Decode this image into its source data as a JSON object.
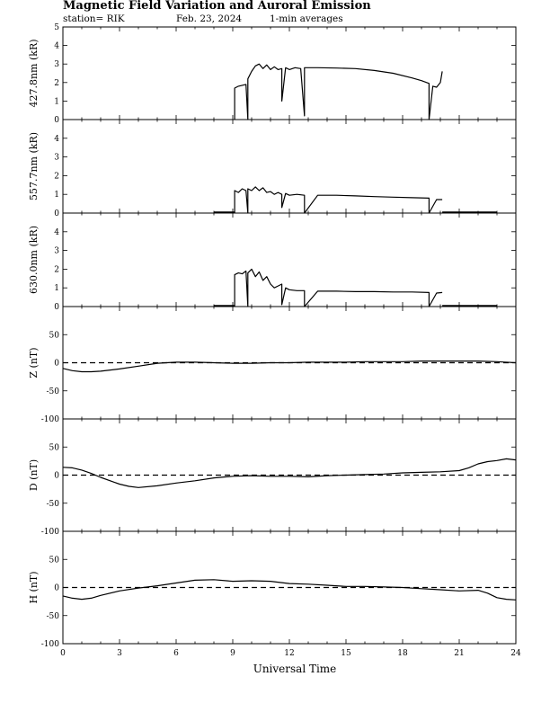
{
  "header": {
    "title": "Magnetic Field Variation and Auroral Emission",
    "station": "station= RIK",
    "date": "Feb. 23, 2024",
    "averaging": "1-min averages"
  },
  "chart_data": {
    "type": "line",
    "xlabel": "Universal Time",
    "xlim": [
      0,
      24
    ],
    "xticks": [
      0,
      3,
      6,
      9,
      12,
      15,
      18,
      21,
      24
    ],
    "panels": [
      {
        "id": "p4278",
        "ylabel": "427.8nm (kR)",
        "ylim": [
          0,
          5
        ],
        "yticks": [
          0,
          1,
          2,
          3,
          4,
          5
        ],
        "zero_line": false,
        "x": [
          9.1,
          9.1,
          9.3,
          9.5,
          9.7,
          9.8,
          9.8,
          10.0,
          10.2,
          10.4,
          10.6,
          10.8,
          11.0,
          11.2,
          11.4,
          11.6,
          11.6,
          11.8,
          12.0,
          12.3,
          12.6,
          12.8,
          12.8,
          13.5,
          14.5,
          15.5,
          16.5,
          17.5,
          18.5,
          19.0,
          19.4,
          19.4,
          19.6,
          19.8,
          20.0,
          20.1
        ],
        "y": [
          0,
          1.7,
          1.8,
          1.85,
          1.9,
          0,
          2.2,
          2.6,
          2.9,
          3.0,
          2.75,
          2.95,
          2.7,
          2.85,
          2.7,
          2.75,
          1.0,
          2.8,
          2.7,
          2.8,
          2.75,
          0.2,
          2.8,
          2.8,
          2.78,
          2.75,
          2.65,
          2.5,
          2.25,
          2.1,
          1.95,
          0,
          1.8,
          1.75,
          2.0,
          2.6
        ],
        "segments": []
      },
      {
        "id": "p5577",
        "ylabel": "557.7nm (kR)",
        "ylim": [
          0,
          5
        ],
        "yticks": [
          0,
          1,
          2,
          3,
          4
        ],
        "zero_line": false,
        "x": [
          9.1,
          9.1,
          9.3,
          9.5,
          9.7,
          9.8,
          9.8,
          10.0,
          10.2,
          10.4,
          10.6,
          10.8,
          11.0,
          11.2,
          11.4,
          11.6,
          11.6,
          11.8,
          12.0,
          12.4,
          12.8,
          12.8,
          13.5,
          14.5,
          15.5,
          16.5,
          17.5,
          18.5,
          19.4,
          19.4,
          19.8,
          20.1
        ],
        "y": [
          0,
          1.2,
          1.1,
          1.3,
          1.2,
          0,
          1.3,
          1.2,
          1.4,
          1.2,
          1.35,
          1.1,
          1.15,
          1.0,
          1.1,
          1.0,
          0.3,
          1.05,
          0.95,
          1.0,
          0.95,
          0,
          0.95,
          0.95,
          0.92,
          0.88,
          0.85,
          0.82,
          0.8,
          0,
          0.72,
          0.72
        ],
        "segments": [
          [
            8.0,
            9.1,
            0.05
          ],
          [
            20.1,
            23.0,
            0.05
          ]
        ]
      },
      {
        "id": "p6300",
        "ylabel": "630.0nm (kR)",
        "ylim": [
          0,
          5
        ],
        "yticks": [
          0,
          1,
          2,
          3,
          4
        ],
        "zero_line": false,
        "x": [
          9.1,
          9.1,
          9.3,
          9.5,
          9.7,
          9.8,
          9.8,
          10.0,
          10.2,
          10.4,
          10.6,
          10.8,
          11.0,
          11.2,
          11.4,
          11.6,
          11.6,
          11.8,
          12.0,
          12.4,
          12.8,
          12.8,
          13.5,
          14.5,
          15.5,
          16.5,
          17.5,
          18.5,
          19.4,
          19.4,
          19.8,
          20.1
        ],
        "y": [
          0,
          1.7,
          1.8,
          1.75,
          1.9,
          0,
          1.8,
          2.0,
          1.6,
          1.85,
          1.4,
          1.6,
          1.2,
          1.0,
          1.1,
          1.2,
          0.1,
          1.0,
          0.9,
          0.85,
          0.85,
          0,
          0.82,
          0.82,
          0.8,
          0.8,
          0.78,
          0.78,
          0.75,
          0,
          0.72,
          0.75
        ],
        "segments": [
          [
            8.0,
            9.1,
            0.05
          ],
          [
            20.1,
            23.0,
            0.05
          ]
        ]
      },
      {
        "id": "pZ",
        "ylabel": "Z (nT)",
        "ylim": [
          -100,
          100
        ],
        "yticks": [
          -100,
          -50,
          0,
          50
        ],
        "zero_line": true,
        "x": [
          0,
          0.5,
          1,
          1.5,
          2,
          3,
          4,
          5,
          6,
          7,
          8,
          9,
          10,
          11,
          12,
          13,
          14,
          15,
          16,
          17,
          18,
          19,
          20,
          21,
          22,
          23,
          24
        ],
        "y": [
          -10,
          -14,
          -16,
          -16,
          -15,
          -11,
          -6,
          -1,
          1,
          1,
          0,
          -1,
          -1,
          0,
          0,
          1,
          1,
          1,
          2,
          2,
          2,
          3,
          3,
          3,
          3,
          2,
          0
        ],
        "segments": []
      },
      {
        "id": "pD",
        "ylabel": "D (nT)",
        "ylim": [
          -100,
          100
        ],
        "yticks": [
          -100,
          -50,
          0,
          50
        ],
        "zero_line": true,
        "x": [
          0,
          0.5,
          1,
          1.5,
          2,
          3,
          3.5,
          4,
          5,
          6,
          7,
          8,
          9,
          10,
          11,
          12,
          13,
          14,
          15,
          16,
          17,
          18,
          19,
          20,
          21,
          21.5,
          22,
          22.5,
          23,
          23.5,
          24
        ],
        "y": [
          14,
          13,
          9,
          3,
          -4,
          -16,
          -20,
          -22,
          -19,
          -14,
          -10,
          -5,
          -2,
          -1,
          -2,
          -2,
          -3,
          -1,
          0,
          1,
          2,
          4,
          5,
          6,
          8,
          13,
          20,
          24,
          26,
          29,
          27
        ],
        "segments": []
      },
      {
        "id": "pH",
        "ylabel": "H (nT)",
        "ylim": [
          -100,
          100
        ],
        "yticks": [
          -100,
          -50,
          0,
          50
        ],
        "zero_line": true,
        "x": [
          0,
          0.5,
          1,
          1.5,
          2,
          3,
          4,
          5,
          6,
          7,
          8,
          9,
          10,
          11,
          12,
          13,
          14,
          15,
          16,
          17,
          18,
          19,
          20,
          21,
          22,
          22.5,
          23,
          23.5,
          24
        ],
        "y": [
          -15,
          -19,
          -21,
          -19,
          -14,
          -6,
          -1,
          3,
          8,
          13,
          14,
          11,
          12,
          11,
          7,
          6,
          4,
          2,
          2,
          1,
          0,
          -2,
          -4,
          -6,
          -5,
          -10,
          -18,
          -21,
          -22
        ],
        "segments": []
      }
    ]
  }
}
